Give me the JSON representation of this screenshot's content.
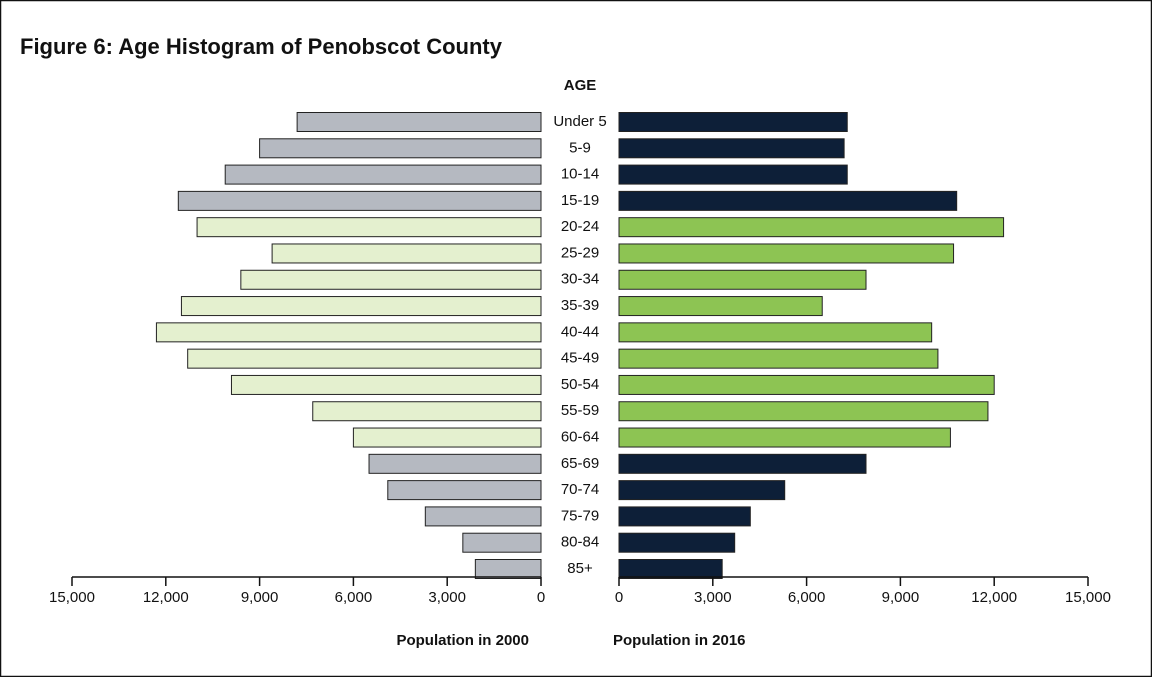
{
  "chart_data": {
    "type": "pyramid",
    "title": "Figure 6: Age Histogram of Penobscot County",
    "center_label": "AGE",
    "categories": [
      "Under 5",
      "5-9",
      "10-14",
      "15-19",
      "20-24",
      "25-29",
      "30-34",
      "35-39",
      "40-44",
      "45-49",
      "50-54",
      "55-59",
      "60-64",
      "65-69",
      "70-74",
      "75-79",
      "80-84",
      "85+"
    ],
    "series": [
      {
        "name": "Population in 2000",
        "colors": [
          "#b5b9c1",
          "#b5b9c1",
          "#b5b9c1",
          "#b5b9c1",
          "#e4f0cf",
          "#e4f0cf",
          "#e4f0cf",
          "#e4f0cf",
          "#e4f0cf",
          "#e4f0cf",
          "#e4f0cf",
          "#e4f0cf",
          "#e4f0cf",
          "#b5b9c1",
          "#b5b9c1",
          "#b5b9c1",
          "#b5b9c1",
          "#b5b9c1"
        ],
        "values": [
          7800,
          9000,
          10100,
          11600,
          11000,
          8600,
          9600,
          11500,
          12300,
          11300,
          9900,
          7300,
          6000,
          5500,
          4900,
          3700,
          2500,
          2100
        ]
      },
      {
        "name": "Population in 2016",
        "colors": [
          "#0d1f38",
          "#0d1f38",
          "#0d1f38",
          "#0d1f38",
          "#8dc453",
          "#8dc453",
          "#8dc453",
          "#8dc453",
          "#8dc453",
          "#8dc453",
          "#8dc453",
          "#8dc453",
          "#8dc453",
          "#0d1f38",
          "#0d1f38",
          "#0d1f38",
          "#0d1f38",
          "#0d1f38"
        ],
        "values": [
          7300,
          7200,
          7300,
          10800,
          12300,
          10700,
          7900,
          6500,
          10000,
          10200,
          12000,
          11800,
          10600,
          7900,
          5300,
          4200,
          3700,
          3300
        ]
      }
    ],
    "xlim": [
      0,
      15000
    ],
    "xticks": [
      0,
      {
        "value": 3000,
        "label": "3,000"
      },
      {
        "value": 6000,
        "label": "6,000"
      },
      {
        "value": 9000,
        "label": "9,000"
      },
      {
        "value": 12000,
        "label": "12,000"
      },
      {
        "value": 15000,
        "label": "15,000"
      }
    ]
  }
}
